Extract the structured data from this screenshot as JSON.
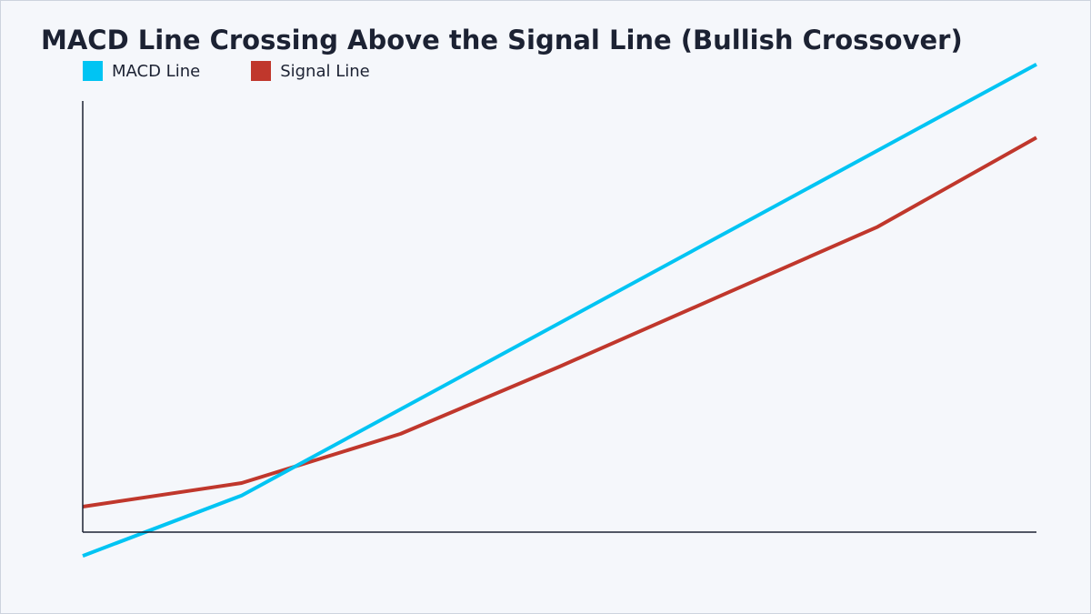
{
  "title": "MACD Line Crossing Above the Signal Line (Bullish Crossover)",
  "colors": {
    "macd": "#00c4f3",
    "signal": "#c0372c",
    "axis": "#1c2233"
  },
  "chart_data": {
    "type": "line",
    "title": "MACD Line Crossing Above the Signal Line (Bullish Crossover)",
    "xlabel": "",
    "ylabel": "",
    "x": [
      0,
      1,
      2,
      3,
      4,
      5,
      6
    ],
    "xlim": [
      0,
      6
    ],
    "ylim": [
      0,
      100
    ],
    "grid": false,
    "legend_placement": "top-left",
    "series": [
      {
        "name": "MACD Line",
        "color": "#00c4f3",
        "values": [
          -5.5,
          8.5,
          28.5,
          48.5,
          68.5,
          88.5,
          108.5
        ]
      },
      {
        "name": "Signal Line",
        "color": "#c0372c",
        "values": [
          5.9,
          11.4,
          22.8,
          38.4,
          54.6,
          70.8,
          91.5
        ]
      }
    ]
  }
}
